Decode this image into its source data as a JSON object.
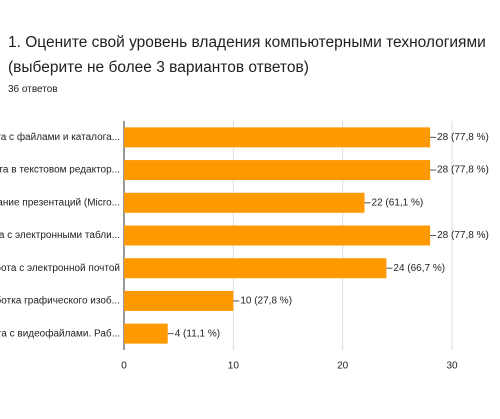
{
  "chart_data": {
    "type": "bar",
    "orientation": "horizontal",
    "title": "1. Оцените свой уровень владения компьютерными технологиями (выберите не более 3 вариантов ответов)",
    "subtitle": "36 ответов",
    "categories": [
      "работа с файлами и каталога...",
      "работа в текстовом редактор...",
      "создание презентаций (Micro...",
      "работа с электронными табли...",
      "работа с электронной почтой",
      "обработка графического изоб...",
      "работа с видеофайлами. Раб..."
    ],
    "values": [
      28,
      28,
      22,
      28,
      24,
      10,
      4
    ],
    "value_labels": [
      "28 (77,8 %)",
      "28 (77,8 %)",
      "22 (61,1 %)",
      "28 (77,8 %)",
      "24 (66,7 %)",
      "10 (27,8 %)",
      "4 (11,1 %)"
    ],
    "color": "#ff9900",
    "xlim": [
      0,
      30
    ],
    "xticks": [
      0,
      10,
      20,
      30
    ],
    "grid": true
  }
}
